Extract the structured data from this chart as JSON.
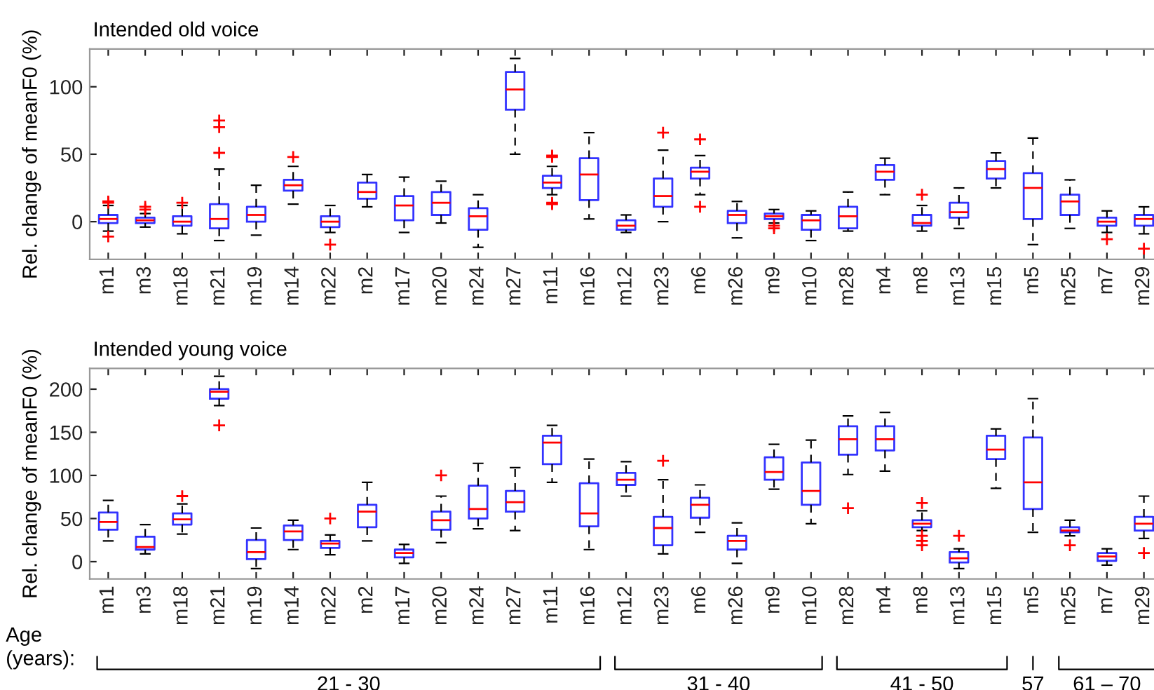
{
  "chart_data": [
    {
      "type": "box",
      "title": "Intended old voice",
      "ylabel": "Rel. change of meanF0 (%)",
      "categories": [
        "m1",
        "m3",
        "m18",
        "m21",
        "m19",
        "m14",
        "m22",
        "m2",
        "m17",
        "m20",
        "m24",
        "m27",
        "m11",
        "m16",
        "m12",
        "m23",
        "m6",
        "m26",
        "m9",
        "m10",
        "m28",
        "m4",
        "m8",
        "m13",
        "m15",
        "m5",
        "m25",
        "m7",
        "m29"
      ],
      "ylim": [
        -28,
        128
      ],
      "yticks": [
        0,
        50,
        100
      ],
      "series": [
        {
          "color": "#3333ff",
          "boxes": [
            {
              "low": -7,
              "q1": -1,
              "median": 2,
              "q3": 5,
              "high": 12,
              "outliers": [
                15,
                14,
                -11
              ]
            },
            {
              "low": -4,
              "q1": -1,
              "median": 1,
              "q3": 3,
              "high": 6,
              "outliers": [
                11,
                9
              ]
            },
            {
              "low": -9,
              "q1": -3,
              "median": 0,
              "q3": 4,
              "high": 12,
              "outliers": [
                14
              ]
            },
            {
              "low": -14,
              "q1": -5,
              "median": 2,
              "q3": 13,
              "high": 39,
              "outliers": [
                51,
                70,
                75
              ]
            },
            {
              "low": -10,
              "q1": 0,
              "median": 5,
              "q3": 11,
              "high": 27
            },
            {
              "low": 13,
              "q1": 23,
              "median": 27,
              "q3": 31,
              "high": 41,
              "outliers": [
                48
              ]
            },
            {
              "low": -8,
              "q1": -4,
              "median": 0,
              "q3": 4,
              "high": 12,
              "outliers": [
                -17
              ]
            },
            {
              "low": 11,
              "q1": 17,
              "median": 22,
              "q3": 29,
              "high": 35
            },
            {
              "low": -8,
              "q1": 1,
              "median": 12,
              "q3": 19,
              "high": 33
            },
            {
              "low": -1,
              "q1": 5,
              "median": 14,
              "q3": 22,
              "high": 30
            },
            {
              "low": -19,
              "q1": -6,
              "median": 4,
              "q3": 10,
              "high": 20
            },
            {
              "low": 50,
              "q1": 83,
              "median": 98,
              "q3": 111,
              "high": 121
            },
            {
              "low": 20,
              "q1": 25,
              "median": 29,
              "q3": 34,
              "high": 41,
              "outliers": [
                48,
                49,
                13,
                14
              ]
            },
            {
              "low": 2,
              "q1": 16,
              "median": 35,
              "q3": 47,
              "high": 66
            },
            {
              "low": -8,
              "q1": -6,
              "median": -3,
              "q3": 1,
              "high": 5
            },
            {
              "low": 0,
              "q1": 11,
              "median": 19,
              "q3": 32,
              "high": 53,
              "outliers": [
                66
              ]
            },
            {
              "low": 20,
              "q1": 32,
              "median": 37,
              "q3": 40,
              "high": 49,
              "outliers": [
                61,
                11
              ]
            },
            {
              "low": -12,
              "q1": -1,
              "median": 5,
              "q3": 8,
              "high": 15
            },
            {
              "low": -1,
              "q1": 2,
              "median": 4,
              "q3": 6,
              "high": 9,
              "outliers": [
                -3,
                -5
              ]
            },
            {
              "low": -14,
              "q1": -6,
              "median": 1,
              "q3": 5,
              "high": 8
            },
            {
              "low": -7,
              "q1": -5,
              "median": 4,
              "q3": 11,
              "high": 22
            },
            {
              "low": 20,
              "q1": 31,
              "median": 37,
              "q3": 42,
              "high": 47
            },
            {
              "low": -7,
              "q1": -3,
              "median": -1,
              "q3": 5,
              "high": 12,
              "outliers": [
                20
              ]
            },
            {
              "low": -5,
              "q1": 3,
              "median": 7,
              "q3": 14,
              "high": 25
            },
            {
              "low": 25,
              "q1": 32,
              "median": 39,
              "q3": 45,
              "high": 51
            },
            {
              "low": -17,
              "q1": 2,
              "median": 25,
              "q3": 36,
              "high": 62
            },
            {
              "low": -5,
              "q1": 5,
              "median": 15,
              "q3": 20,
              "high": 31
            },
            {
              "low": -8,
              "q1": -3,
              "median": 0,
              "q3": 3,
              "high": 8,
              "outliers": [
                -13
              ]
            },
            {
              "low": -9,
              "q1": -3,
              "median": 2,
              "q3": 5,
              "high": 11,
              "outliers": [
                -20
              ]
            }
          ]
        }
      ]
    },
    {
      "type": "box",
      "title": "Intended young voice",
      "ylabel": "Rel. change of meanF0 (%)",
      "categories": [
        "m1",
        "m3",
        "m18",
        "m21",
        "m19",
        "m14",
        "m22",
        "m2",
        "m17",
        "m20",
        "m24",
        "m27",
        "m11",
        "m16",
        "m12",
        "m23",
        "m6",
        "m26",
        "m9",
        "m10",
        "m28",
        "m4",
        "m8",
        "m13",
        "m15",
        "m5",
        "m25",
        "m7",
        "m29"
      ],
      "ylim": [
        -20,
        224
      ],
      "yticks": [
        0,
        50,
        100,
        150,
        200
      ],
      "annotations": [
        "Age\n(years):",
        "21 - 30",
        "31 - 40",
        "41 - 50",
        "57",
        "61 – 70"
      ],
      "series": [
        {
          "color": "#3333ff",
          "boxes": [
            {
              "low": 24,
              "q1": 37,
              "median": 46,
              "q3": 57,
              "high": 71
            },
            {
              "low": 9,
              "q1": 14,
              "median": 17,
              "q3": 29,
              "high": 43
            },
            {
              "low": 32,
              "q1": 43,
              "median": 49,
              "q3": 56,
              "high": 67,
              "outliers": [
                76
              ]
            },
            {
              "low": 181,
              "q1": 189,
              "median": 197,
              "q3": 200,
              "high": 215,
              "outliers": [
                158
              ]
            },
            {
              "low": -8,
              "q1": 3,
              "median": 11,
              "q3": 25,
              "high": 39
            },
            {
              "low": 14,
              "q1": 25,
              "median": 35,
              "q3": 42,
              "high": 48
            },
            {
              "low": 8,
              "q1": 16,
              "median": 21,
              "q3": 24,
              "high": 31,
              "outliers": [
                50
              ]
            },
            {
              "low": 24,
              "q1": 40,
              "median": 58,
              "q3": 66,
              "high": 92
            },
            {
              "low": -2,
              "q1": 5,
              "median": 10,
              "q3": 14,
              "high": 20
            },
            {
              "low": 22,
              "q1": 37,
              "median": 48,
              "q3": 58,
              "high": 76,
              "outliers": [
                100
              ]
            },
            {
              "low": 38,
              "q1": 50,
              "median": 61,
              "q3": 88,
              "high": 114
            },
            {
              "low": 36,
              "q1": 58,
              "median": 69,
              "q3": 82,
              "high": 109
            },
            {
              "low": 92,
              "q1": 113,
              "median": 138,
              "q3": 146,
              "high": 158
            },
            {
              "low": 14,
              "q1": 41,
              "median": 56,
              "q3": 91,
              "high": 119
            },
            {
              "low": 76,
              "q1": 89,
              "median": 95,
              "q3": 103,
              "high": 116
            },
            {
              "low": 9,
              "q1": 19,
              "median": 39,
              "q3": 52,
              "high": 95,
              "outliers": [
                117
              ]
            },
            {
              "low": 34,
              "q1": 51,
              "median": 66,
              "q3": 74,
              "high": 89
            },
            {
              "low": -2,
              "q1": 14,
              "median": 24,
              "q3": 30,
              "high": 45
            },
            {
              "low": 84,
              "q1": 95,
              "median": 104,
              "q3": 121,
              "high": 136
            },
            {
              "low": 44,
              "q1": 66,
              "median": 82,
              "q3": 115,
              "high": 141
            },
            {
              "low": 101,
              "q1": 124,
              "median": 142,
              "q3": 157,
              "high": 169,
              "outliers": [
                62
              ]
            },
            {
              "low": 105,
              "q1": 129,
              "median": 142,
              "q3": 157,
              "high": 173
            },
            {
              "low": 36,
              "q1": 40,
              "median": 44,
              "q3": 48,
              "high": 59,
              "outliers": [
                68,
                30,
                24,
                19
              ]
            },
            {
              "low": -8,
              "q1": -1,
              "median": 4,
              "q3": 11,
              "high": 15,
              "outliers": [
                30
              ]
            },
            {
              "low": 85,
              "q1": 119,
              "median": 130,
              "q3": 146,
              "high": 154
            },
            {
              "low": 34,
              "q1": 61,
              "median": 92,
              "q3": 144,
              "high": 189
            },
            {
              "low": 30,
              "q1": 34,
              "median": 36,
              "q3": 40,
              "high": 48,
              "outliers": [
                19
              ]
            },
            {
              "low": -4,
              "q1": 1,
              "median": 6,
              "q3": 10,
              "high": 15
            },
            {
              "low": 27,
              "q1": 36,
              "median": 44,
              "q3": 52,
              "high": 76,
              "outliers": [
                10
              ]
            }
          ]
        }
      ]
    }
  ]
}
